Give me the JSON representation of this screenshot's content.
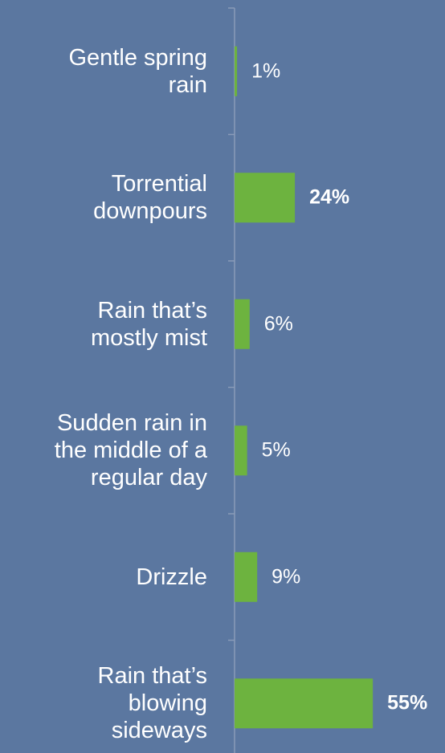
{
  "chart_data": {
    "type": "bar",
    "orientation": "horizontal",
    "categories": [
      "Gentle spring\nrain",
      "Torrential\ndownpours",
      "Rain that’s\nmostly mist",
      "Sudden rain in\nthe middle of a\nregular day",
      "Drizzle",
      "Rain that’s\nblowing\nsideways"
    ],
    "values": [
      1,
      24,
      6,
      5,
      9,
      55
    ],
    "value_labels": [
      "1%",
      "24%",
      "6%",
      "5%",
      "9%",
      "55%"
    ],
    "value_label_bold": [
      false,
      true,
      false,
      false,
      false,
      true
    ],
    "color": "#6db33f",
    "background": "#5b77a0"
  }
}
